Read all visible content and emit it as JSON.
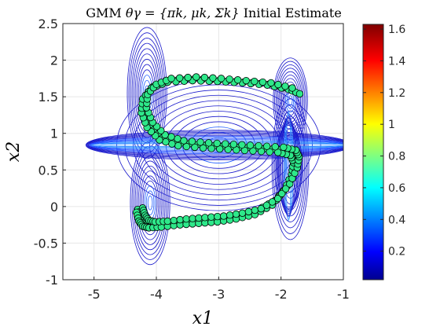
{
  "chart_data": {
    "type": "scatter",
    "title": "GMM θγ = {πk, μk, Σk} Initial Estimate",
    "title_parts": {
      "plain": "GMM ",
      "math": "θγ = {πk, μk, Σk}",
      "suffix": " Initial Estimate"
    },
    "xlabel": "x1",
    "ylabel": "x2",
    "xlim": [
      -5.5,
      -1
    ],
    "ylim": [
      -1,
      2.5
    ],
    "xticks": [
      -5,
      -4,
      -3,
      -2,
      -1
    ],
    "yticks": [
      -1,
      -0.5,
      0,
      0.5,
      1,
      1.5,
      2,
      2.5
    ],
    "xtick_labels": [
      "-5",
      "-4",
      "-3",
      "-2",
      "-1"
    ],
    "ytick_labels": [
      "-1",
      "-0.5",
      "0",
      "0.5",
      "1",
      "1.5",
      "2",
      "2.5"
    ],
    "grid": true,
    "colorbar": {
      "colormap": "jet",
      "range": [
        0.02,
        1.63
      ],
      "ticks": [
        0.2,
        0.4,
        0.6,
        0.8,
        1,
        1.2,
        1.4,
        1.6
      ],
      "tick_labels": [
        "0.2",
        "0.4",
        "0.6",
        "0.8",
        "1",
        "1.2",
        "1.4",
        "1.6"
      ]
    },
    "contour": {
      "type": "contour",
      "colormap": "jet",
      "center_band_y": 0.84
    },
    "series": [
      {
        "marker_face": "#2ee88a",
        "marker_edge": "#000000",
        "x": [
          -4.3,
          -4.25,
          -4.2,
          -4.1,
          -3.9,
          -3.6,
          -3.3,
          -3.0,
          -2.7,
          -2.4,
          -2.1,
          -1.9,
          -1.78,
          -1.75,
          -1.8,
          -2.0,
          -2.4,
          -2.8,
          -3.2,
          -3.6,
          -3.9,
          -4.1,
          -4.2,
          -4.18,
          -4.05,
          -3.8,
          -3.4,
          -3.0,
          -2.6,
          -2.2,
          -1.85
        ],
        "y": [
          -0.04,
          -0.15,
          -0.22,
          -0.24,
          -0.23,
          -0.2,
          -0.18,
          -0.16,
          -0.12,
          -0.06,
          0.08,
          0.28,
          0.5,
          0.65,
          0.74,
          0.78,
          0.8,
          0.82,
          0.84,
          0.87,
          0.95,
          1.12,
          1.32,
          1.5,
          1.64,
          1.72,
          1.74,
          1.72,
          1.7,
          1.67,
          1.6
        ]
      },
      {
        "marker_face": "#2ee88a",
        "marker_edge": "#000000",
        "x": [
          -4.32,
          -4.28,
          -4.22,
          -4.12,
          -3.92,
          -3.62,
          -3.32,
          -3.02,
          -2.72,
          -2.42,
          -2.14,
          -1.95,
          -1.83,
          -1.8,
          -1.85,
          -2.05,
          -2.45,
          -2.85,
          -3.25,
          -3.65,
          -3.95,
          -4.15,
          -4.24,
          -4.22,
          -4.08,
          -3.82,
          -3.42,
          -3.02,
          -2.62,
          -2.22,
          -1.88,
          -1.7
        ],
        "y": [
          -0.08,
          -0.2,
          -0.27,
          -0.29,
          -0.28,
          -0.25,
          -0.23,
          -0.21,
          -0.17,
          -0.11,
          0.02,
          0.22,
          0.44,
          0.6,
          0.7,
          0.74,
          0.76,
          0.78,
          0.8,
          0.83,
          0.91,
          1.08,
          1.28,
          1.47,
          1.62,
          1.7,
          1.72,
          1.71,
          1.69,
          1.66,
          1.6,
          1.54
        ]
      },
      {
        "marker_face": "#2ee88a",
        "marker_edge": "#000000",
        "x": [
          -4.22,
          -4.18,
          -4.12,
          -4.02,
          -3.82,
          -3.52,
          -3.22,
          -2.92,
          -2.62,
          -2.32,
          -2.05,
          -1.86,
          -1.74,
          -1.71,
          -1.76,
          -1.96,
          -2.36,
          -2.76,
          -3.16,
          -3.56,
          -3.86,
          -4.06,
          -4.16,
          -4.14,
          -4.0,
          -3.76,
          -3.36,
          -2.96,
          -2.56,
          -2.16,
          -1.82
        ],
        "y": [
          -0.02,
          -0.12,
          -0.19,
          -0.21,
          -0.2,
          -0.17,
          -0.15,
          -0.13,
          -0.09,
          -0.03,
          0.11,
          0.31,
          0.53,
          0.68,
          0.77,
          0.81,
          0.83,
          0.85,
          0.87,
          0.9,
          0.98,
          1.15,
          1.35,
          1.53,
          1.67,
          1.75,
          1.77,
          1.75,
          1.72,
          1.69,
          1.62
        ]
      }
    ]
  }
}
